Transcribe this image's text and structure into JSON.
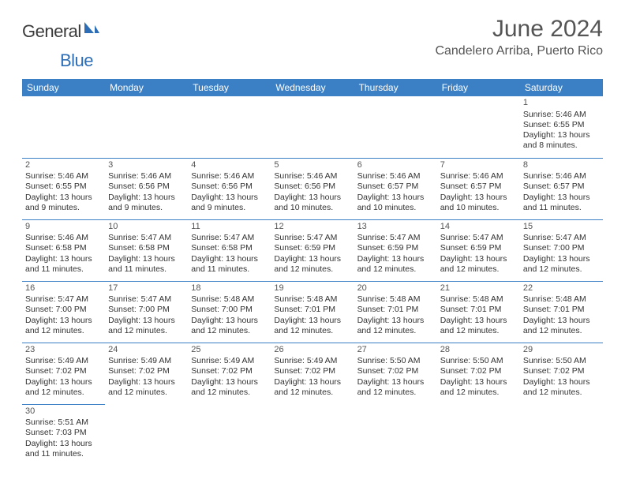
{
  "brand": {
    "text1": "General",
    "text2": "Blue",
    "color_general": "#3a3a3a",
    "color_blue": "#2c6db5",
    "sail_color": "#2c6db5"
  },
  "title": "June 2024",
  "location": "Candelero Arriba, Puerto Rico",
  "header_bg": "#3b7fc4",
  "header_fg": "#ffffff",
  "rule_color": "#3b7fc4",
  "text_color": "#333333",
  "weekdays": [
    "Sunday",
    "Monday",
    "Tuesday",
    "Wednesday",
    "Thursday",
    "Friday",
    "Saturday"
  ],
  "weeks": [
    [
      null,
      null,
      null,
      null,
      null,
      null,
      {
        "n": "1",
        "sr": "Sunrise: 5:46 AM",
        "ss": "Sunset: 6:55 PM",
        "d1": "Daylight: 13 hours",
        "d2": "and 8 minutes."
      }
    ],
    [
      {
        "n": "2",
        "sr": "Sunrise: 5:46 AM",
        "ss": "Sunset: 6:55 PM",
        "d1": "Daylight: 13 hours",
        "d2": "and 9 minutes."
      },
      {
        "n": "3",
        "sr": "Sunrise: 5:46 AM",
        "ss": "Sunset: 6:56 PM",
        "d1": "Daylight: 13 hours",
        "d2": "and 9 minutes."
      },
      {
        "n": "4",
        "sr": "Sunrise: 5:46 AM",
        "ss": "Sunset: 6:56 PM",
        "d1": "Daylight: 13 hours",
        "d2": "and 9 minutes."
      },
      {
        "n": "5",
        "sr": "Sunrise: 5:46 AM",
        "ss": "Sunset: 6:56 PM",
        "d1": "Daylight: 13 hours",
        "d2": "and 10 minutes."
      },
      {
        "n": "6",
        "sr": "Sunrise: 5:46 AM",
        "ss": "Sunset: 6:57 PM",
        "d1": "Daylight: 13 hours",
        "d2": "and 10 minutes."
      },
      {
        "n": "7",
        "sr": "Sunrise: 5:46 AM",
        "ss": "Sunset: 6:57 PM",
        "d1": "Daylight: 13 hours",
        "d2": "and 10 minutes."
      },
      {
        "n": "8",
        "sr": "Sunrise: 5:46 AM",
        "ss": "Sunset: 6:57 PM",
        "d1": "Daylight: 13 hours",
        "d2": "and 11 minutes."
      }
    ],
    [
      {
        "n": "9",
        "sr": "Sunrise: 5:46 AM",
        "ss": "Sunset: 6:58 PM",
        "d1": "Daylight: 13 hours",
        "d2": "and 11 minutes."
      },
      {
        "n": "10",
        "sr": "Sunrise: 5:47 AM",
        "ss": "Sunset: 6:58 PM",
        "d1": "Daylight: 13 hours",
        "d2": "and 11 minutes."
      },
      {
        "n": "11",
        "sr": "Sunrise: 5:47 AM",
        "ss": "Sunset: 6:58 PM",
        "d1": "Daylight: 13 hours",
        "d2": "and 11 minutes."
      },
      {
        "n": "12",
        "sr": "Sunrise: 5:47 AM",
        "ss": "Sunset: 6:59 PM",
        "d1": "Daylight: 13 hours",
        "d2": "and 12 minutes."
      },
      {
        "n": "13",
        "sr": "Sunrise: 5:47 AM",
        "ss": "Sunset: 6:59 PM",
        "d1": "Daylight: 13 hours",
        "d2": "and 12 minutes."
      },
      {
        "n": "14",
        "sr": "Sunrise: 5:47 AM",
        "ss": "Sunset: 6:59 PM",
        "d1": "Daylight: 13 hours",
        "d2": "and 12 minutes."
      },
      {
        "n": "15",
        "sr": "Sunrise: 5:47 AM",
        "ss": "Sunset: 7:00 PM",
        "d1": "Daylight: 13 hours",
        "d2": "and 12 minutes."
      }
    ],
    [
      {
        "n": "16",
        "sr": "Sunrise: 5:47 AM",
        "ss": "Sunset: 7:00 PM",
        "d1": "Daylight: 13 hours",
        "d2": "and 12 minutes."
      },
      {
        "n": "17",
        "sr": "Sunrise: 5:47 AM",
        "ss": "Sunset: 7:00 PM",
        "d1": "Daylight: 13 hours",
        "d2": "and 12 minutes."
      },
      {
        "n": "18",
        "sr": "Sunrise: 5:48 AM",
        "ss": "Sunset: 7:00 PM",
        "d1": "Daylight: 13 hours",
        "d2": "and 12 minutes."
      },
      {
        "n": "19",
        "sr": "Sunrise: 5:48 AM",
        "ss": "Sunset: 7:01 PM",
        "d1": "Daylight: 13 hours",
        "d2": "and 12 minutes."
      },
      {
        "n": "20",
        "sr": "Sunrise: 5:48 AM",
        "ss": "Sunset: 7:01 PM",
        "d1": "Daylight: 13 hours",
        "d2": "and 12 minutes."
      },
      {
        "n": "21",
        "sr": "Sunrise: 5:48 AM",
        "ss": "Sunset: 7:01 PM",
        "d1": "Daylight: 13 hours",
        "d2": "and 12 minutes."
      },
      {
        "n": "22",
        "sr": "Sunrise: 5:48 AM",
        "ss": "Sunset: 7:01 PM",
        "d1": "Daylight: 13 hours",
        "d2": "and 12 minutes."
      }
    ],
    [
      {
        "n": "23",
        "sr": "Sunrise: 5:49 AM",
        "ss": "Sunset: 7:02 PM",
        "d1": "Daylight: 13 hours",
        "d2": "and 12 minutes."
      },
      {
        "n": "24",
        "sr": "Sunrise: 5:49 AM",
        "ss": "Sunset: 7:02 PM",
        "d1": "Daylight: 13 hours",
        "d2": "and 12 minutes."
      },
      {
        "n": "25",
        "sr": "Sunrise: 5:49 AM",
        "ss": "Sunset: 7:02 PM",
        "d1": "Daylight: 13 hours",
        "d2": "and 12 minutes."
      },
      {
        "n": "26",
        "sr": "Sunrise: 5:49 AM",
        "ss": "Sunset: 7:02 PM",
        "d1": "Daylight: 13 hours",
        "d2": "and 12 minutes."
      },
      {
        "n": "27",
        "sr": "Sunrise: 5:50 AM",
        "ss": "Sunset: 7:02 PM",
        "d1": "Daylight: 13 hours",
        "d2": "and 12 minutes."
      },
      {
        "n": "28",
        "sr": "Sunrise: 5:50 AM",
        "ss": "Sunset: 7:02 PM",
        "d1": "Daylight: 13 hours",
        "d2": "and 12 minutes."
      },
      {
        "n": "29",
        "sr": "Sunrise: 5:50 AM",
        "ss": "Sunset: 7:02 PM",
        "d1": "Daylight: 13 hours",
        "d2": "and 12 minutes."
      }
    ],
    [
      {
        "n": "30",
        "sr": "Sunrise: 5:51 AM",
        "ss": "Sunset: 7:03 PM",
        "d1": "Daylight: 13 hours",
        "d2": "and 11 minutes."
      },
      null,
      null,
      null,
      null,
      null,
      null
    ]
  ]
}
